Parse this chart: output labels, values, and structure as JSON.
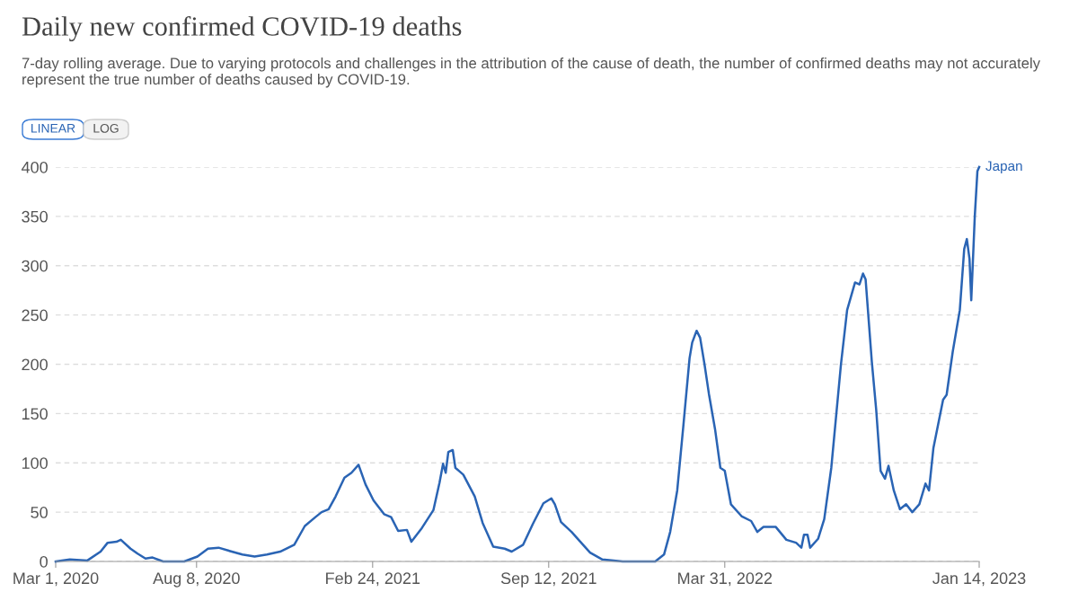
{
  "chart_data": {
    "type": "line",
    "title": "Daily new confirmed COVID-19 deaths",
    "subtitle": "7-day rolling average. Due to varying protocols and challenges in the attribution of the cause of death, the number of confirmed deaths may not accurately represent the true number of deaths caused by COVID-19.",
    "annotations": [
      "LINEAR",
      "LOG"
    ],
    "x": [
      "2020-03-01",
      "2020-03-17",
      "2020-04-06",
      "2020-04-21",
      "2020-04-29",
      "2020-05-09",
      "2020-05-14",
      "2020-05-25",
      "2020-06-02",
      "2020-06-11",
      "2020-06-19",
      "2020-07-01",
      "2020-07-25",
      "2020-08-09",
      "2020-08-21",
      "2020-09-02",
      "2020-09-17",
      "2020-09-29",
      "2020-10-13",
      "2020-10-27",
      "2020-11-11",
      "2020-11-27",
      "2020-12-09",
      "2020-12-21",
      "2020-12-28",
      "2021-01-05",
      "2021-01-13",
      "2021-01-23",
      "2021-01-31",
      "2021-02-08",
      "2021-02-16",
      "2021-02-25",
      "2021-03-09",
      "2021-03-17",
      "2021-03-25",
      "2021-04-04",
      "2021-04-09",
      "2021-04-21",
      "2021-05-04",
      "2021-05-11",
      "2021-05-15",
      "2021-05-18",
      "2021-05-21",
      "2021-05-26",
      "2021-05-29",
      "2021-06-07",
      "2021-06-20",
      "2021-06-29",
      "2021-07-11",
      "2021-07-24",
      "2021-08-01",
      "2021-08-14",
      "2021-08-25",
      "2021-09-06",
      "2021-09-15",
      "2021-09-19",
      "2021-09-26",
      "2021-10-08",
      "2021-10-18",
      "2021-10-29",
      "2021-11-12",
      "2021-12-05",
      "2022-01-11",
      "2022-01-21",
      "2022-01-28",
      "2022-02-05",
      "2022-02-12",
      "2022-02-19",
      "2022-02-22",
      "2022-02-27",
      "2022-03-03",
      "2022-03-08",
      "2022-03-13",
      "2022-03-20",
      "2022-03-26",
      "2022-03-31",
      "2022-04-07",
      "2022-04-19",
      "2022-04-30",
      "2022-05-07",
      "2022-05-14",
      "2022-05-28",
      "2022-06-09",
      "2022-06-20",
      "2022-06-26",
      "2022-06-29",
      "2022-07-03",
      "2022-07-06",
      "2022-07-15",
      "2022-07-22",
      "2022-07-30",
      "2022-08-10",
      "2022-08-17",
      "2022-08-26",
      "2022-08-31",
      "2022-09-04",
      "2022-09-07",
      "2022-09-14",
      "2022-09-19",
      "2022-09-24",
      "2022-09-29",
      "2022-10-03",
      "2022-10-09",
      "2022-10-16",
      "2022-10-23",
      "2022-10-30",
      "2022-11-07",
      "2022-11-14",
      "2022-11-18",
      "2022-11-23",
      "2022-12-04",
      "2022-12-08",
      "2022-12-15",
      "2022-12-23",
      "2022-12-28",
      "2022-12-31",
      "2023-01-03",
      "2023-01-05",
      "2023-01-09",
      "2023-01-12",
      "2023-01-14"
    ],
    "series": [
      {
        "name": "Japan",
        "color": "#2a64b4",
        "values": [
          0,
          2,
          1,
          10,
          19,
          20,
          22,
          13,
          8,
          3,
          4,
          0,
          0,
          5,
          13,
          14,
          10,
          7,
          5,
          7,
          10,
          17,
          36,
          45,
          50,
          53,
          66,
          85,
          90,
          98,
          78,
          62,
          48,
          45,
          31,
          32,
          20,
          34,
          52,
          80,
          99,
          90,
          111,
          113,
          95,
          88,
          66,
          39,
          15,
          13,
          10,
          17,
          38,
          59,
          64,
          58,
          40,
          30,
          20,
          9,
          2,
          0,
          0,
          7,
          30,
          72,
          138,
          206,
          222,
          234,
          227,
          200,
          170,
          134,
          95,
          92,
          58,
          46,
          41,
          30,
          35,
          35,
          22,
          19,
          14,
          27,
          27,
          14,
          23,
          43,
          95,
          200,
          255,
          283,
          281,
          292,
          286,
          203,
          154,
          92,
          84,
          97,
          72,
          53,
          58,
          50,
          58,
          79,
          72,
          115,
          164,
          169,
          213,
          255,
          317,
          327,
          307,
          265,
          350,
          396,
          400
        ]
      }
    ],
    "xlim": [
      "2020-03-01",
      "2023-01-14"
    ],
    "xticks": [
      {
        "value": "2020-03-01",
        "label": "Mar 1, 2020"
      },
      {
        "value": "2020-08-08",
        "label": "Aug 8, 2020"
      },
      {
        "value": "2021-02-24",
        "label": "Feb 24, 2021"
      },
      {
        "value": "2021-09-12",
        "label": "Sep 12, 2021"
      },
      {
        "value": "2022-03-31",
        "label": "Mar 31, 2022"
      },
      {
        "value": "2023-01-14",
        "label": "Jan 14, 2023"
      }
    ],
    "ylim": [
      0,
      400
    ],
    "yticks": [
      0,
      50,
      100,
      150,
      200,
      250,
      300,
      350,
      400
    ],
    "grid": "y",
    "legend": false,
    "marker": "none",
    "line_style": "solid"
  }
}
